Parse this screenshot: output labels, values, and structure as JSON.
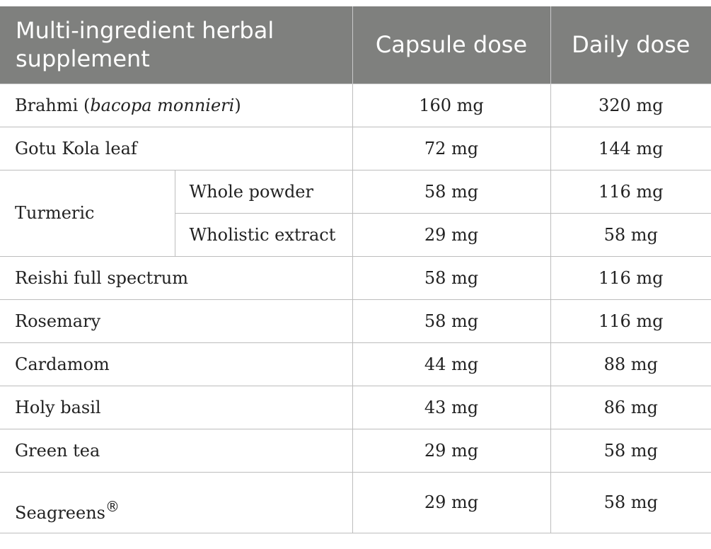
{
  "headers": {
    "supplement": "Multi-ingredient herbal supplement",
    "capsule": "Capsule dose",
    "daily": "Daily dose"
  },
  "rows": [
    {
      "name": "Brahmi (",
      "name_italic": "bacopa monnieri",
      "name_tail": ")",
      "capsule": "160 mg",
      "daily": "320 mg"
    },
    {
      "name": "Gotu Kola leaf",
      "capsule": "72 mg",
      "daily": "144 mg"
    },
    {
      "name": "Turmeric",
      "sub": "Whole powder",
      "capsule": "58 mg",
      "daily": "116 mg"
    },
    {
      "sub": "Wholistic extract",
      "capsule": "29 mg",
      "daily": "58 mg"
    },
    {
      "name": "Reishi full spectrum",
      "capsule": "58 mg",
      "daily": "116 mg"
    },
    {
      "name": "Rosemary",
      "capsule": "58 mg",
      "daily": "116 mg"
    },
    {
      "name": "Cardamom",
      "capsule": "44 mg",
      "daily": "88 mg"
    },
    {
      "name": "Holy basil",
      "capsule": "43 mg",
      "daily": "86 mg"
    },
    {
      "name": "Green tea",
      "capsule": "29 mg",
      "daily": "58 mg"
    },
    {
      "name": "Seagreens",
      "name_sup": "®",
      "capsule": "29 mg",
      "daily": "58 mg"
    }
  ]
}
